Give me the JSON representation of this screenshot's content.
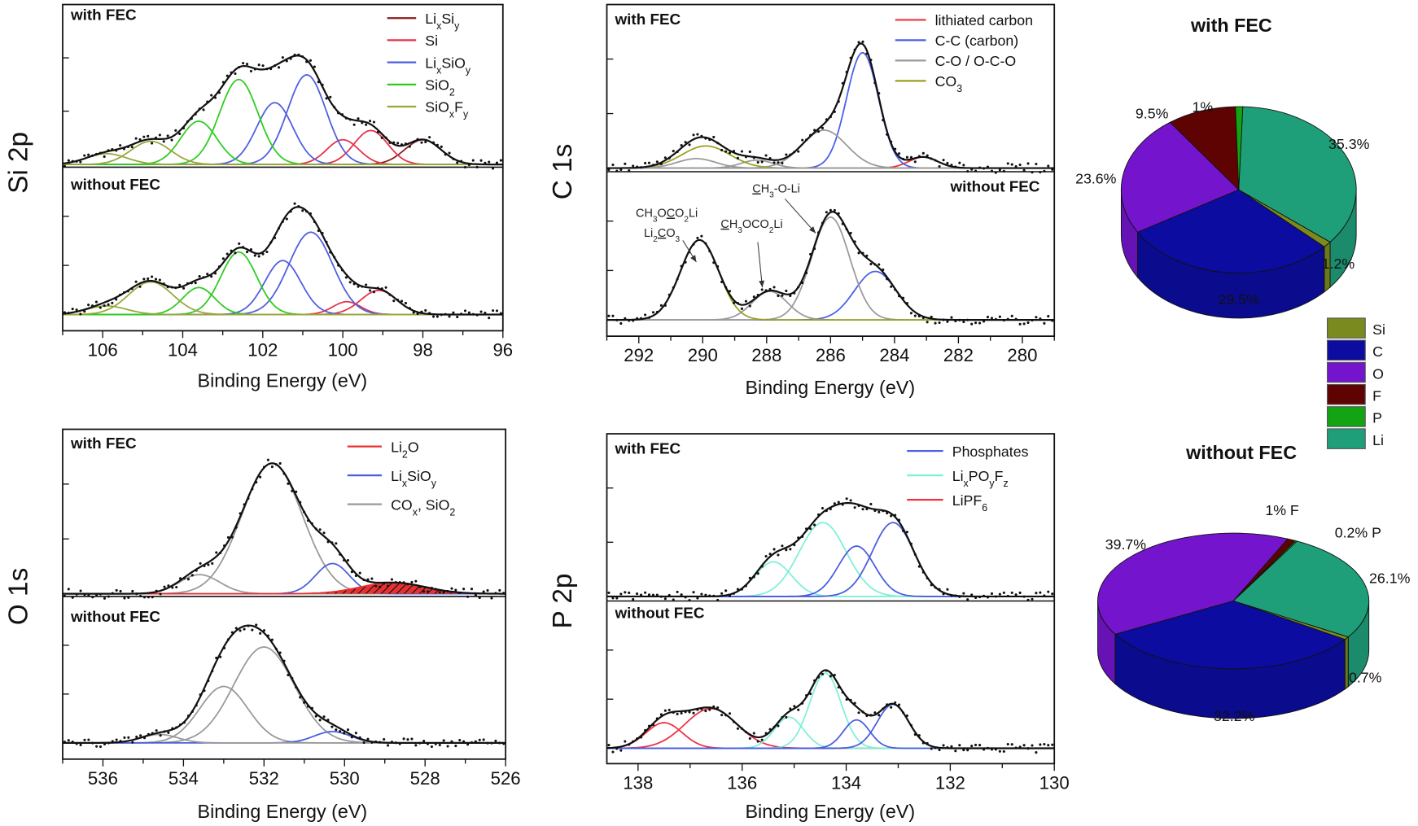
{
  "chart_data": [
    {
      "type": "line",
      "ylabel": "Si 2p",
      "xlabel": "Binding Energy (eV)",
      "xlim": [
        107,
        96
      ],
      "xticks": [
        106,
        104,
        102,
        100,
        98,
        96
      ],
      "legend": [
        {
          "label": [
            {
              "t": "Li"
            },
            {
              "sub": "x"
            },
            {
              "t": "Si"
            },
            {
              "sub": "y"
            }
          ],
          "color": "#8b1c1c"
        },
        {
          "label": [
            {
              "t": "Si"
            }
          ],
          "color": "#e8304a"
        },
        {
          "label": [
            {
              "t": "Li"
            },
            {
              "sub": "x"
            },
            {
              "t": "SiO"
            },
            {
              "sub": "y"
            }
          ],
          "color": "#4f5ee0"
        },
        {
          "label": [
            {
              "t": "SiO"
            },
            {
              "sub": "2"
            }
          ],
          "color": "#2ecc1f"
        },
        {
          "label": [
            {
              "t": "SiO"
            },
            {
              "sub": "x"
            },
            {
              "t": "F"
            },
            {
              "sub": "y"
            }
          ],
          "color": "#9aa63a"
        }
      ],
      "subplots": [
        {
          "label": "with FEC",
          "peaks": [
            {
              "component": 0,
              "center": 98.0,
              "height": 0.16,
              "sigma": 0.45
            },
            {
              "component": 1,
              "center": 99.3,
              "height": 0.22,
              "sigma": 0.42
            },
            {
              "component": 1,
              "center": 100.0,
              "height": 0.16,
              "sigma": 0.4
            },
            {
              "component": 2,
              "center": 100.9,
              "height": 0.58,
              "sigma": 0.48
            },
            {
              "component": 2,
              "center": 101.7,
              "height": 0.4,
              "sigma": 0.45
            },
            {
              "component": 3,
              "center": 102.6,
              "height": 0.55,
              "sigma": 0.48
            },
            {
              "component": 3,
              "center": 103.6,
              "height": 0.28,
              "sigma": 0.45
            },
            {
              "component": 4,
              "center": 104.8,
              "height": 0.15,
              "sigma": 0.5
            },
            {
              "component": 4,
              "center": 105.9,
              "height": 0.07,
              "sigma": 0.5
            }
          ]
        },
        {
          "label": "without FEC",
          "peaks": [
            {
              "component": 1,
              "center": 99.1,
              "height": 0.17,
              "sigma": 0.45
            },
            {
              "component": 1,
              "center": 99.9,
              "height": 0.09,
              "sigma": 0.35
            },
            {
              "component": 2,
              "center": 100.8,
              "height": 0.58,
              "sigma": 0.55
            },
            {
              "component": 2,
              "center": 101.5,
              "height": 0.38,
              "sigma": 0.45
            },
            {
              "component": 3,
              "center": 102.6,
              "height": 0.44,
              "sigma": 0.45
            },
            {
              "component": 3,
              "center": 103.6,
              "height": 0.19,
              "sigma": 0.4
            },
            {
              "component": 4,
              "center": 104.8,
              "height": 0.23,
              "sigma": 0.55
            },
            {
              "component": 4,
              "center": 105.9,
              "height": 0.06,
              "sigma": 0.5
            }
          ]
        }
      ]
    },
    {
      "type": "line",
      "ylabel": "C 1s",
      "xlabel": "Binding Energy (eV)",
      "xlim": [
        293,
        279
      ],
      "xticks": [
        292,
        290,
        288,
        286,
        284,
        282,
        280
      ],
      "legend": [
        {
          "label": [
            {
              "t": "lithiated carbon"
            }
          ],
          "color": "#f0303a"
        },
        {
          "label": [
            {
              "t": "C-C (carbon)"
            }
          ],
          "color": "#4a60e8"
        },
        {
          "label": [
            {
              "t": "C-O / O-C-O"
            }
          ],
          "color": "#9a9a9a"
        },
        {
          "label": [
            {
              "t": "CO"
            },
            {
              "sub": "3"
            }
          ],
          "color": "#9aa020"
        }
      ],
      "subplots": [
        {
          "label": "with FEC",
          "peaks": [
            {
              "component": 0,
              "center": 283.1,
              "height": 0.07,
              "sigma": 0.45
            },
            {
              "component": 1,
              "center": 285.0,
              "height": 0.73,
              "sigma": 0.5
            },
            {
              "component": 2,
              "center": 286.2,
              "height": 0.24,
              "sigma": 0.7
            },
            {
              "component": 2,
              "center": 288.3,
              "height": 0.05,
              "sigma": 0.5
            },
            {
              "component": 3,
              "center": 289.9,
              "height": 0.14,
              "sigma": 0.75
            },
            {
              "component": 2,
              "center": 290.2,
              "height": 0.06,
              "sigma": 0.6
            }
          ]
        },
        {
          "label": "without FEC",
          "peaks": [
            {
              "component": 1,
              "center": 284.6,
              "height": 0.34,
              "sigma": 0.65
            },
            {
              "component": 2,
              "center": 286.0,
              "height": 0.72,
              "sigma": 0.6
            },
            {
              "component": 2,
              "center": 287.9,
              "height": 0.2,
              "sigma": 0.55
            },
            {
              "component": 3,
              "center": 290.1,
              "height": 0.56,
              "sigma": 0.6
            }
          ]
        }
      ],
      "annotations": [
        {
          "text": [
            {
              "t": "CH"
            },
            {
              "sub": "3"
            },
            {
              "t": "O"
            },
            {
              "u": "C"
            },
            {
              "t": "O"
            },
            {
              "sub": "2"
            },
            {
              "t": "Li"
            }
          ]
        },
        {
          "text": [
            {
              "t": "Li"
            },
            {
              "sub": "2"
            },
            {
              "u": "C"
            },
            {
              "t": "O"
            },
            {
              "sub": "3"
            }
          ]
        },
        {
          "text": [
            {
              "u": "C"
            },
            {
              "t": "H"
            },
            {
              "sub": "3"
            },
            {
              "t": "OCO"
            },
            {
              "sub": "2"
            },
            {
              "t": "Li"
            }
          ]
        },
        {
          "text": [
            {
              "u": "C"
            },
            {
              "t": "H"
            },
            {
              "sub": "3"
            },
            {
              "t": "-O-Li"
            }
          ]
        }
      ]
    },
    {
      "type": "line",
      "ylabel": "O 1s",
      "xlabel": "Binding Energy (eV)",
      "xlim": [
        537,
        526
      ],
      "xticks": [
        536,
        534,
        532,
        530,
        528,
        526
      ],
      "legend": [
        {
          "label": [
            {
              "t": "Li"
            },
            {
              "sub": "2"
            },
            {
              "t": "O"
            }
          ],
          "color": "#e83030"
        },
        {
          "label": [
            {
              "t": "Li"
            },
            {
              "sub": "x"
            },
            {
              "t": "SiO"
            },
            {
              "sub": "y"
            }
          ],
          "color": "#4a5ee0"
        },
        {
          "label": [
            {
              "t": "CO"
            },
            {
              "sub": "x"
            },
            {
              "t": ", SiO"
            },
            {
              "sub": "2"
            }
          ],
          "color": "#999999"
        }
      ],
      "subplots": [
        {
          "label": "with FEC",
          "peaks": [
            {
              "component": 2,
              "center": 531.8,
              "height": 0.82,
              "sigma": 0.75
            },
            {
              "component": 2,
              "center": 533.6,
              "height": 0.12,
              "sigma": 0.5
            },
            {
              "component": 1,
              "center": 530.3,
              "height": 0.19,
              "sigma": 0.42
            },
            {
              "component": 0,
              "center": 528.8,
              "height": 0.07,
              "sigma": 0.8
            }
          ]
        },
        {
          "label": "without FEC",
          "peaks": [
            {
              "component": 2,
              "center": 532.0,
              "height": 0.68,
              "sigma": 0.75
            },
            {
              "component": 2,
              "center": 533.0,
              "height": 0.4,
              "sigma": 0.6
            },
            {
              "component": 1,
              "center": 530.3,
              "height": 0.08,
              "sigma": 0.45
            },
            {
              "component": 2,
              "center": 534.6,
              "height": 0.06,
              "sigma": 0.45
            }
          ]
        }
      ]
    },
    {
      "type": "line",
      "ylabel": "P 2p",
      "xlabel": "Binding Energy (eV)",
      "xlim": [
        138.6,
        130
      ],
      "xticks": [
        138,
        136,
        134,
        132,
        130
      ],
      "legend": [
        {
          "label": [
            {
              "t": "Phosphates"
            }
          ],
          "color": "#4a5ee0"
        },
        {
          "label": [
            {
              "t": "Li"
            },
            {
              "sub": "x"
            },
            {
              "t": "PO"
            },
            {
              "sub": "y"
            },
            {
              "t": "F"
            },
            {
              "sub": "z"
            }
          ],
          "color": "#7ff0d8"
        },
        {
          "label": [
            {
              "t": "LiPF"
            },
            {
              "sub": "6"
            }
          ],
          "color": "#f03040"
        }
      ],
      "subplots": [
        {
          "label": "with FEC",
          "peaks": [
            {
              "component": 1,
              "center": 134.45,
              "height": 0.47,
              "sigma": 0.45
            },
            {
              "component": 1,
              "center": 135.4,
              "height": 0.22,
              "sigma": 0.35
            },
            {
              "component": 0,
              "center": 133.1,
              "height": 0.47,
              "sigma": 0.4
            },
            {
              "component": 0,
              "center": 133.8,
              "height": 0.32,
              "sigma": 0.35
            }
          ]
        },
        {
          "label": "without FEC",
          "peaks": [
            {
              "component": 2,
              "center": 137.5,
              "height": 0.18,
              "sigma": 0.35
            },
            {
              "component": 2,
              "center": 136.6,
              "height": 0.28,
              "sigma": 0.5
            },
            {
              "component": 1,
              "center": 135.1,
              "height": 0.22,
              "sigma": 0.28
            },
            {
              "component": 1,
              "center": 134.4,
              "height": 0.53,
              "sigma": 0.3
            },
            {
              "component": 0,
              "center": 133.8,
              "height": 0.2,
              "sigma": 0.25
            },
            {
              "component": 0,
              "center": 133.1,
              "height": 0.31,
              "sigma": 0.3
            }
          ]
        }
      ]
    },
    {
      "type": "pie",
      "title": "with FEC",
      "slices": [
        {
          "name": "Li",
          "value": 35.3,
          "label": "35.3%"
        },
        {
          "name": "Si",
          "value": 1.2,
          "label": "1.2%"
        },
        {
          "name": "C",
          "value": 29.5,
          "label": "29.5%"
        },
        {
          "name": "O",
          "value": 23.6,
          "label": "23.6%"
        },
        {
          "name": "F",
          "value": 9.5,
          "label": "9.5%"
        },
        {
          "name": "P",
          "value": 1,
          "label": "1%"
        }
      ]
    },
    {
      "type": "pie",
      "title": "without FEC",
      "slices": [
        {
          "name": "Li",
          "value": 26.1,
          "label": "26.1%"
        },
        {
          "name": "Si",
          "value": 0.7,
          "label": "0.7%"
        },
        {
          "name": "C",
          "value": 32.2,
          "label": "32.2%"
        },
        {
          "name": "O",
          "value": 39.7,
          "label": "39.7%"
        },
        {
          "name": "F",
          "value": 1,
          "label": "1% F"
        },
        {
          "name": "P",
          "value": 0.2,
          "label": "0.2% P"
        }
      ]
    }
  ],
  "pie_legend": [
    {
      "name": "Si",
      "color": "#7a8a1e"
    },
    {
      "name": "C",
      "color": "#0c0ca0"
    },
    {
      "name": "O",
      "color": "#7414cc"
    },
    {
      "name": "F",
      "color": "#5e0202"
    },
    {
      "name": "P",
      "color": "#12a412"
    },
    {
      "name": "Li",
      "color": "#1f9e7a"
    }
  ]
}
